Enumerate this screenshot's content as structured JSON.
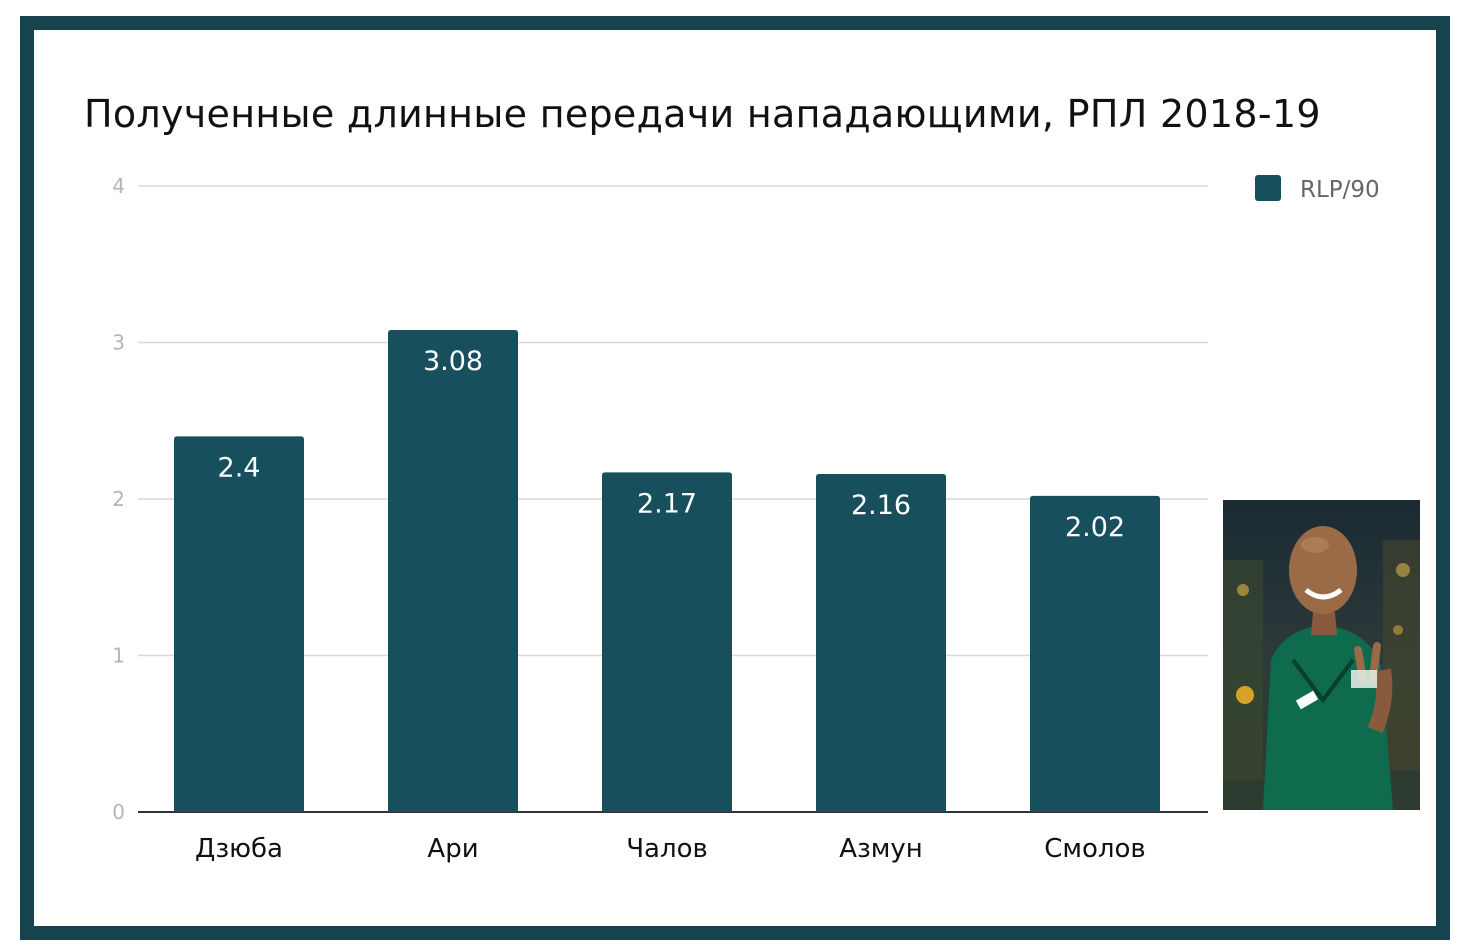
{
  "chart_data": {
    "type": "bar",
    "title": "Полученные длинные передачи нападающими, РПЛ 2018-19",
    "categories": [
      "Дзюба",
      "Ари",
      "Чалов",
      "Азмун",
      "Смолов"
    ],
    "series": [
      {
        "name": "RLP/90",
        "values": [
          2.4,
          3.08,
          2.17,
          2.16,
          2.02
        ]
      }
    ],
    "data_labels": [
      "2.4",
      "3.08",
      "2.17",
      "2.16",
      "2.02"
    ],
    "yticks": [
      "0",
      "1",
      "2",
      "3",
      "4"
    ],
    "ylim": [
      0,
      4
    ],
    "grid": true,
    "legend_position": "top-right",
    "colors": {
      "bar": "#174f5c",
      "frame": "#17434f",
      "grid": "#d9d9d9",
      "tick_label": "#b5b5b5",
      "data_label": "#ffffff"
    }
  },
  "photo": {
    "icon": "player-photo-icon"
  }
}
